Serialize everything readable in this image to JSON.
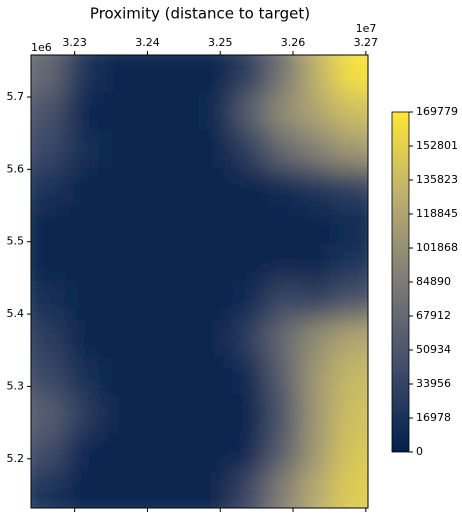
{
  "chart_data": {
    "type": "heatmap",
    "title": "Proximity (distance to target)",
    "x_offset_label": "1e7",
    "y_offset_label": "1e6",
    "xlim": [
      3.224,
      3.2703
    ],
    "xticks": [
      3.23,
      3.24,
      3.25,
      3.26,
      3.27
    ],
    "ylim": [
      5.132,
      5.758
    ],
    "yticks": [
      5.2,
      5.3,
      5.4,
      5.5,
      5.6,
      5.7
    ],
    "z": [
      [
        70000,
        20000,
        5000,
        5000,
        5000,
        5000,
        30000,
        80000,
        130000,
        165000
      ],
      [
        50000,
        8000,
        5000,
        5000,
        5000,
        10000,
        60000,
        100000,
        120000,
        140000
      ],
      [
        40000,
        15000,
        5000,
        5000,
        5000,
        5000,
        30000,
        70000,
        90000,
        110000
      ],
      [
        20000,
        5000,
        5000,
        5000,
        5000,
        5000,
        5000,
        10000,
        20000,
        30000
      ],
      [
        5000,
        5000,
        5000,
        5000,
        5000,
        5000,
        5000,
        5000,
        5000,
        10000
      ],
      [
        5000,
        5000,
        5000,
        5000,
        5000,
        5000,
        5000,
        5000,
        5000,
        20000
      ],
      [
        15000,
        5000,
        5000,
        5000,
        5000,
        5000,
        10000,
        40000,
        30000,
        50000
      ],
      [
        30000,
        5000,
        5000,
        5000,
        5000,
        5000,
        30000,
        70000,
        100000,
        120000
      ],
      [
        40000,
        15000,
        5000,
        5000,
        5000,
        5000,
        10000,
        60000,
        110000,
        135000
      ],
      [
        60000,
        30000,
        5000,
        5000,
        5000,
        5000,
        5000,
        50000,
        110000,
        140000
      ],
      [
        45000,
        8000,
        5000,
        5000,
        5000,
        5000,
        8000,
        60000,
        110000,
        145000
      ],
      [
        20000,
        5000,
        5000,
        5000,
        5000,
        5000,
        40000,
        90000,
        125000,
        150000
      ]
    ],
    "colormap": [
      "#00204c",
      "#414d6b",
      "#7c7b78",
      "#bcaf6f",
      "#fde737"
    ],
    "clim": [
      0,
      169779
    ],
    "colorbar_ticks": [
      0,
      16978,
      33956,
      50934,
      67912,
      84890,
      101868,
      118845,
      135823,
      152801,
      169779
    ]
  }
}
